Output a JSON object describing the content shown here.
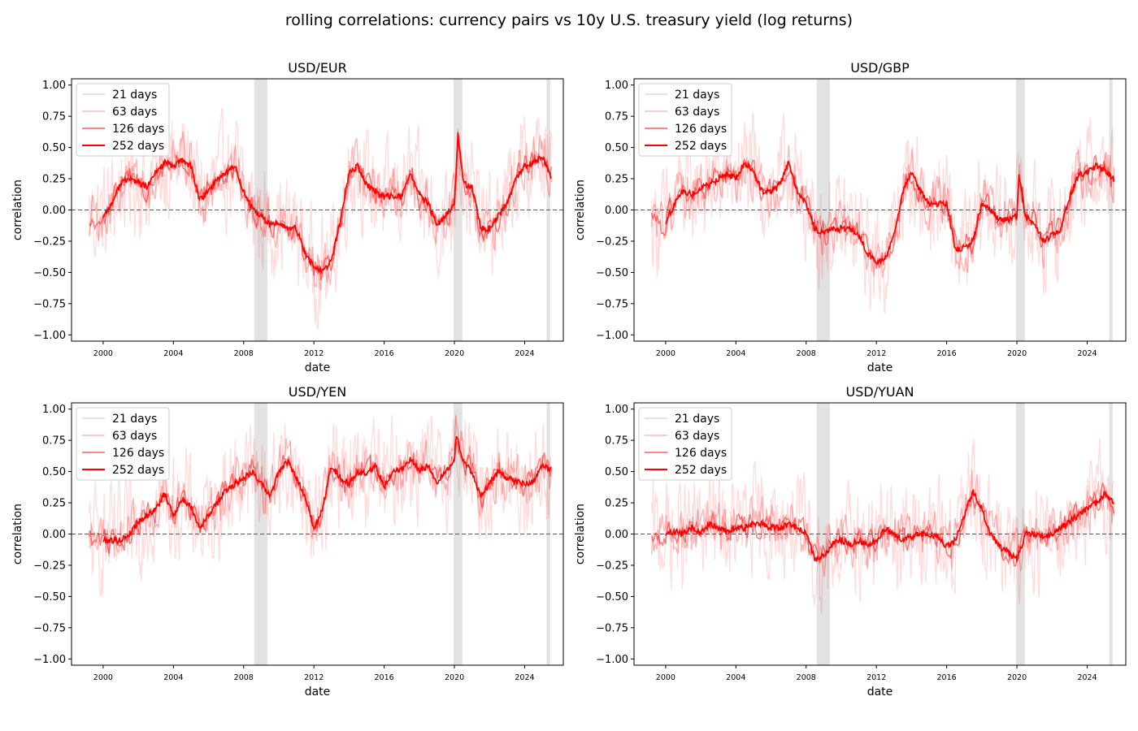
{
  "suptitle": "rolling correlations: currency pairs vs 10y U.S. treasury yield (log returns)",
  "colors": {
    "series": "#ff0000",
    "recession_shade": "#bfbfbf",
    "zero_line": "#555555",
    "legend_21": "#dcdcdc"
  },
  "legend": [
    "21 days",
    "63 days",
    "126 days",
    "252 days"
  ],
  "chart_data": [
    {
      "type": "line",
      "title": "USD/EUR",
      "xlabel": "date",
      "ylabel": "correlation",
      "xlim": [
        1998.2,
        2026.2
      ],
      "ylim": [
        -1.05,
        1.05
      ],
      "xticks": [
        2000,
        2004,
        2008,
        2012,
        2016,
        2020,
        2024
      ],
      "yticks": [
        -1.0,
        -0.75,
        -0.5,
        -0.25,
        0.0,
        0.25,
        0.5,
        0.75,
        1.0
      ],
      "shaded_periods": [
        [
          2008.6,
          2009.35
        ],
        [
          2019.95,
          2020.45
        ],
        [
          2025.25,
          2025.45
        ]
      ],
      "reference_line": 0,
      "legend_location": "upper left",
      "series": [
        {
          "name": "252 days",
          "x": [
            2000.0,
            2000.5,
            2001.0,
            2001.5,
            2002.0,
            2002.5,
            2003.0,
            2003.5,
            2004.0,
            2004.5,
            2005.0,
            2005.5,
            2006.0,
            2006.5,
            2007.0,
            2007.5,
            2008.0,
            2008.5,
            2009.0,
            2009.5,
            2010.0,
            2010.5,
            2011.0,
            2011.5,
            2012.0,
            2012.5,
            2013.0,
            2013.5,
            2014.0,
            2014.5,
            2015.0,
            2015.5,
            2016.0,
            2016.5,
            2017.0,
            2017.5,
            2018.0,
            2018.5,
            2019.0,
            2019.5,
            2020.0,
            2020.2,
            2020.5,
            2021.0,
            2021.5,
            2022.0,
            2022.5,
            2023.0,
            2023.5,
            2024.0,
            2024.5,
            2025.0,
            2025.5
          ],
          "values": [
            -0.05,
            0.05,
            0.22,
            0.25,
            0.22,
            0.18,
            0.3,
            0.38,
            0.35,
            0.4,
            0.35,
            0.08,
            0.15,
            0.25,
            0.3,
            0.35,
            0.15,
            0.0,
            -0.05,
            -0.12,
            -0.1,
            -0.15,
            -0.15,
            -0.35,
            -0.45,
            -0.5,
            -0.4,
            -0.1,
            0.3,
            0.35,
            0.2,
            0.15,
            0.1,
            0.12,
            0.1,
            0.3,
            0.12,
            0.05,
            -0.12,
            -0.05,
            0.05,
            0.6,
            0.22,
            0.18,
            -0.15,
            -0.15,
            -0.05,
            0.05,
            0.25,
            0.35,
            0.38,
            0.42,
            0.27
          ]
        }
      ]
    },
    {
      "type": "line",
      "title": "USD/GBP",
      "xlabel": "date",
      "ylabel": "correlation",
      "xlim": [
        1998.2,
        2026.2
      ],
      "ylim": [
        -1.05,
        1.05
      ],
      "xticks": [
        2000,
        2004,
        2008,
        2012,
        2016,
        2020,
        2024
      ],
      "yticks": [
        -1.0,
        -0.75,
        -0.5,
        -0.25,
        0.0,
        0.25,
        0.5,
        0.75,
        1.0
      ],
      "shaded_periods": [
        [
          2008.6,
          2009.35
        ],
        [
          2019.95,
          2020.45
        ],
        [
          2025.25,
          2025.45
        ]
      ],
      "reference_line": 0,
      "legend_location": "upper left",
      "series": [
        {
          "name": "252 days",
          "x": [
            2000.0,
            2000.5,
            2001.0,
            2001.5,
            2002.0,
            2002.5,
            2003.0,
            2003.5,
            2004.0,
            2004.5,
            2005.0,
            2005.5,
            2006.0,
            2006.5,
            2007.0,
            2007.5,
            2008.0,
            2008.5,
            2009.0,
            2009.5,
            2010.0,
            2010.5,
            2011.0,
            2011.5,
            2012.0,
            2012.5,
            2013.0,
            2013.5,
            2014.0,
            2014.5,
            2015.0,
            2015.5,
            2016.0,
            2016.5,
            2017.0,
            2017.5,
            2018.0,
            2018.5,
            2019.0,
            2019.5,
            2020.0,
            2020.1,
            2020.5,
            2021.0,
            2021.5,
            2022.0,
            2022.5,
            2023.0,
            2023.5,
            2024.0,
            2024.5,
            2025.0,
            2025.5
          ],
          "values": [
            -0.1,
            0.05,
            0.15,
            0.12,
            0.18,
            0.2,
            0.25,
            0.3,
            0.25,
            0.38,
            0.3,
            0.15,
            0.15,
            0.2,
            0.38,
            0.15,
            0.05,
            -0.15,
            -0.18,
            -0.15,
            -0.15,
            -0.15,
            -0.2,
            -0.35,
            -0.42,
            -0.4,
            -0.2,
            0.15,
            0.3,
            0.15,
            0.05,
            0.05,
            0.05,
            -0.32,
            -0.3,
            -0.25,
            0.05,
            0.0,
            -0.08,
            -0.08,
            -0.05,
            0.28,
            -0.05,
            -0.1,
            -0.25,
            -0.2,
            -0.15,
            0.1,
            0.28,
            0.3,
            0.35,
            0.32,
            0.25
          ]
        }
      ]
    },
    {
      "type": "line",
      "title": "USD/YEN",
      "xlabel": "date",
      "ylabel": "correlation",
      "xlim": [
        1998.2,
        2026.2
      ],
      "ylim": [
        -1.05,
        1.05
      ],
      "xticks": [
        2000,
        2004,
        2008,
        2012,
        2016,
        2020,
        2024
      ],
      "yticks": [
        -1.0,
        -0.75,
        -0.5,
        -0.25,
        0.0,
        0.25,
        0.5,
        0.75,
        1.0
      ],
      "shaded_periods": [
        [
          2008.6,
          2009.35
        ],
        [
          2019.95,
          2020.45
        ],
        [
          2025.25,
          2025.45
        ]
      ],
      "reference_line": 0,
      "legend_location": "upper left",
      "series": [
        {
          "name": "252 days",
          "x": [
            2000.0,
            2000.5,
            2001.0,
            2001.5,
            2002.0,
            2002.5,
            2003.0,
            2003.5,
            2004.0,
            2004.5,
            2005.0,
            2005.5,
            2006.0,
            2006.5,
            2007.0,
            2007.5,
            2008.0,
            2008.5,
            2009.0,
            2009.5,
            2010.0,
            2010.5,
            2011.0,
            2011.5,
            2012.0,
            2012.5,
            2013.0,
            2013.5,
            2014.0,
            2014.5,
            2015.0,
            2015.5,
            2016.0,
            2016.5,
            2017.0,
            2017.5,
            2018.0,
            2018.5,
            2019.0,
            2019.5,
            2020.0,
            2020.1,
            2020.5,
            2021.0,
            2021.5,
            2022.0,
            2022.5,
            2023.0,
            2023.5,
            2024.0,
            2024.5,
            2025.0,
            2025.5
          ],
          "values": [
            -0.05,
            -0.05,
            -0.05,
            0.0,
            0.1,
            0.15,
            0.2,
            0.32,
            0.15,
            0.28,
            0.22,
            0.05,
            0.15,
            0.25,
            0.35,
            0.4,
            0.45,
            0.5,
            0.4,
            0.3,
            0.5,
            0.58,
            0.45,
            0.3,
            0.05,
            0.2,
            0.55,
            0.45,
            0.4,
            0.5,
            0.48,
            0.55,
            0.38,
            0.5,
            0.52,
            0.6,
            0.5,
            0.55,
            0.4,
            0.5,
            0.6,
            0.8,
            0.58,
            0.5,
            0.3,
            0.4,
            0.5,
            0.45,
            0.42,
            0.4,
            0.42,
            0.55,
            0.52
          ]
        }
      ]
    },
    {
      "type": "line",
      "title": "USD/YUAN",
      "xlabel": "date",
      "ylabel": "correlation",
      "xlim": [
        1998.2,
        2026.2
      ],
      "ylim": [
        -1.05,
        1.05
      ],
      "xticks": [
        2000,
        2004,
        2008,
        2012,
        2016,
        2020,
        2024
      ],
      "yticks": [
        -1.0,
        -0.75,
        -0.5,
        -0.25,
        0.0,
        0.25,
        0.5,
        0.75,
        1.0
      ],
      "shaded_periods": [
        [
          2008.6,
          2009.35
        ],
        [
          2019.95,
          2020.45
        ],
        [
          2025.25,
          2025.45
        ]
      ],
      "reference_line": 0,
      "legend_location": "upper left",
      "series": [
        {
          "name": "252 days",
          "x": [
            2000.0,
            2000.5,
            2001.0,
            2001.5,
            2002.0,
            2002.5,
            2003.0,
            2003.5,
            2004.0,
            2004.5,
            2005.0,
            2005.5,
            2006.0,
            2006.5,
            2007.0,
            2007.5,
            2008.0,
            2008.5,
            2009.0,
            2009.5,
            2010.0,
            2010.5,
            2011.0,
            2011.5,
            2012.0,
            2012.5,
            2013.0,
            2013.5,
            2014.0,
            2014.5,
            2015.0,
            2015.5,
            2016.0,
            2016.5,
            2017.0,
            2017.5,
            2018.0,
            2018.5,
            2019.0,
            2019.5,
            2020.0,
            2020.5,
            2021.0,
            2021.5,
            2022.0,
            2022.5,
            2023.0,
            2023.5,
            2024.0,
            2024.5,
            2025.0,
            2025.5
          ],
          "values": [
            0.0,
            0.02,
            0.0,
            0.05,
            0.0,
            0.08,
            0.05,
            0.02,
            0.05,
            0.05,
            0.08,
            0.08,
            0.05,
            0.05,
            0.08,
            0.05,
            0.0,
            -0.2,
            -0.18,
            -0.08,
            -0.05,
            -0.08,
            -0.05,
            -0.1,
            -0.05,
            0.05,
            0.0,
            -0.05,
            -0.02,
            0.0,
            0.0,
            -0.02,
            -0.1,
            -0.05,
            0.15,
            0.35,
            0.2,
            0.0,
            -0.1,
            -0.15,
            -0.2,
            0.0,
            0.0,
            -0.02,
            0.0,
            0.05,
            0.1,
            0.15,
            0.2,
            0.25,
            0.32,
            0.25
          ]
        }
      ]
    }
  ]
}
